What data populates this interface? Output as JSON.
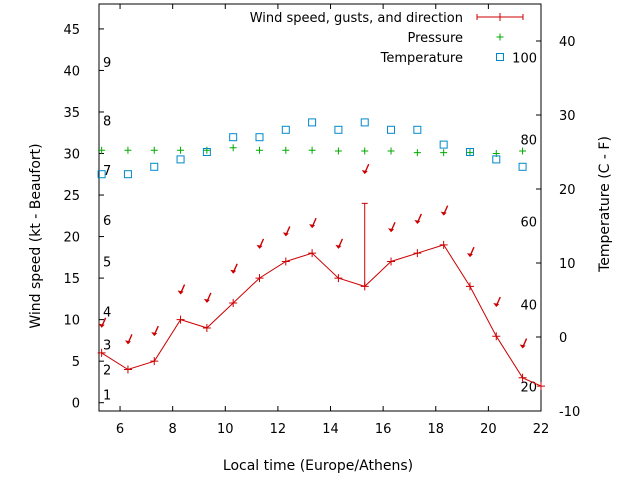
{
  "chart_data": {
    "type": "line",
    "xlabel": "Local time (Europe/Athens)",
    "ylabel_left": "Wind speed (kt - Beaufort)",
    "ylabel_right": "Temperature (C - F)",
    "x_range": [
      5.2,
      22
    ],
    "y_left_range": [
      -1,
      48
    ],
    "y_right_range": [
      -10,
      45
    ],
    "x_ticks": [
      6,
      8,
      10,
      12,
      14,
      16,
      18,
      20,
      22
    ],
    "y_left_ticks": [
      0,
      5,
      10,
      15,
      20,
      25,
      30,
      35,
      40,
      45
    ],
    "y_right_ticks": [
      -10,
      0,
      10,
      20,
      30,
      40
    ],
    "beaufort_labels": [
      {
        "label": "1",
        "kt": 1
      },
      {
        "label": "2",
        "kt": 4
      },
      {
        "label": "3",
        "kt": 7
      },
      {
        "label": "4",
        "kt": 11
      },
      {
        "label": "5",
        "kt": 17
      },
      {
        "label": "6",
        "kt": 22
      },
      {
        "label": "7",
        "kt": 28
      },
      {
        "label": "8",
        "kt": 34
      },
      {
        "label": "9",
        "kt": 41
      }
    ],
    "fahrenheit_labels": [
      {
        "label": "20",
        "celsius": -6.7
      },
      {
        "label": "40",
        "celsius": 4.4
      },
      {
        "label": "60",
        "celsius": 15.6
      },
      {
        "label": "80",
        "celsius": 26.7
      },
      {
        "label": "100",
        "celsius": 37.8
      }
    ],
    "legend": {
      "position": "top-right",
      "entries": [
        {
          "label": "Wind speed, gusts, and direction",
          "color": "#cc0000",
          "marker": "line-plus"
        },
        {
          "label": "Pressure",
          "color": "#00aa00",
          "marker": "plus"
        },
        {
          "label": "Temperature",
          "color": "#0088cc",
          "marker": "square"
        }
      ]
    },
    "series": [
      {
        "name": "Wind speed, gusts, and direction",
        "color": "#cc0000",
        "x": [
          5.3,
          6.3,
          7.3,
          8.3,
          9.3,
          10.3,
          11.3,
          12.3,
          13.3,
          14.3,
          15.3,
          16.3,
          17.3,
          18.3,
          19.3,
          20.3,
          21.3,
          22.0
        ],
        "y": [
          6,
          4,
          5,
          10,
          9,
          12,
          15,
          17,
          18,
          15,
          14,
          17,
          18,
          19,
          14,
          8,
          3,
          2
        ],
        "gusts": [
          {
            "x": 15.3,
            "y": 24
          }
        ],
        "direction_arrows": [
          {
            "x": 5.3,
            "y": 9.5
          },
          {
            "x": 6.3,
            "y": 7.5
          },
          {
            "x": 7.3,
            "y": 8.5
          },
          {
            "x": 8.3,
            "y": 13.5
          },
          {
            "x": 9.3,
            "y": 12.5
          },
          {
            "x": 10.3,
            "y": 16
          },
          {
            "x": 11.3,
            "y": 19
          },
          {
            "x": 12.3,
            "y": 20.5
          },
          {
            "x": 13.3,
            "y": 21.5
          },
          {
            "x": 14.3,
            "y": 19
          },
          {
            "x": 15.3,
            "y": 28
          },
          {
            "x": 16.3,
            "y": 21
          },
          {
            "x": 17.3,
            "y": 22
          },
          {
            "x": 18.3,
            "y": 23
          },
          {
            "x": 19.3,
            "y": 18
          },
          {
            "x": 20.3,
            "y": 12
          },
          {
            "x": 21.3,
            "y": 7
          }
        ]
      },
      {
        "name": "Pressure",
        "color": "#00aa00",
        "x": [
          5.3,
          6.3,
          7.3,
          8.3,
          9.3,
          10.3,
          11.3,
          12.3,
          13.3,
          14.3,
          15.3,
          16.3,
          17.3,
          18.3,
          19.3,
          20.3,
          21.3
        ],
        "y": [
          30.4,
          30.4,
          30.4,
          30.4,
          30.4,
          30.7,
          30.4,
          30.4,
          30.4,
          30.3,
          30.3,
          30.3,
          30.1,
          30.1,
          30.1,
          30.0,
          30.3
        ]
      },
      {
        "name": "Temperature",
        "color": "#0088cc",
        "axis": "right",
        "x": [
          5.3,
          6.3,
          7.3,
          8.3,
          9.3,
          10.3,
          11.3,
          12.3,
          13.3,
          14.3,
          15.3,
          16.3,
          17.3,
          18.3,
          19.3,
          20.3,
          21.3
        ],
        "y": [
          22,
          22,
          23,
          24,
          25,
          27,
          27,
          28,
          29,
          28,
          29,
          28,
          28,
          26,
          25,
          24,
          23
        ]
      }
    ]
  }
}
